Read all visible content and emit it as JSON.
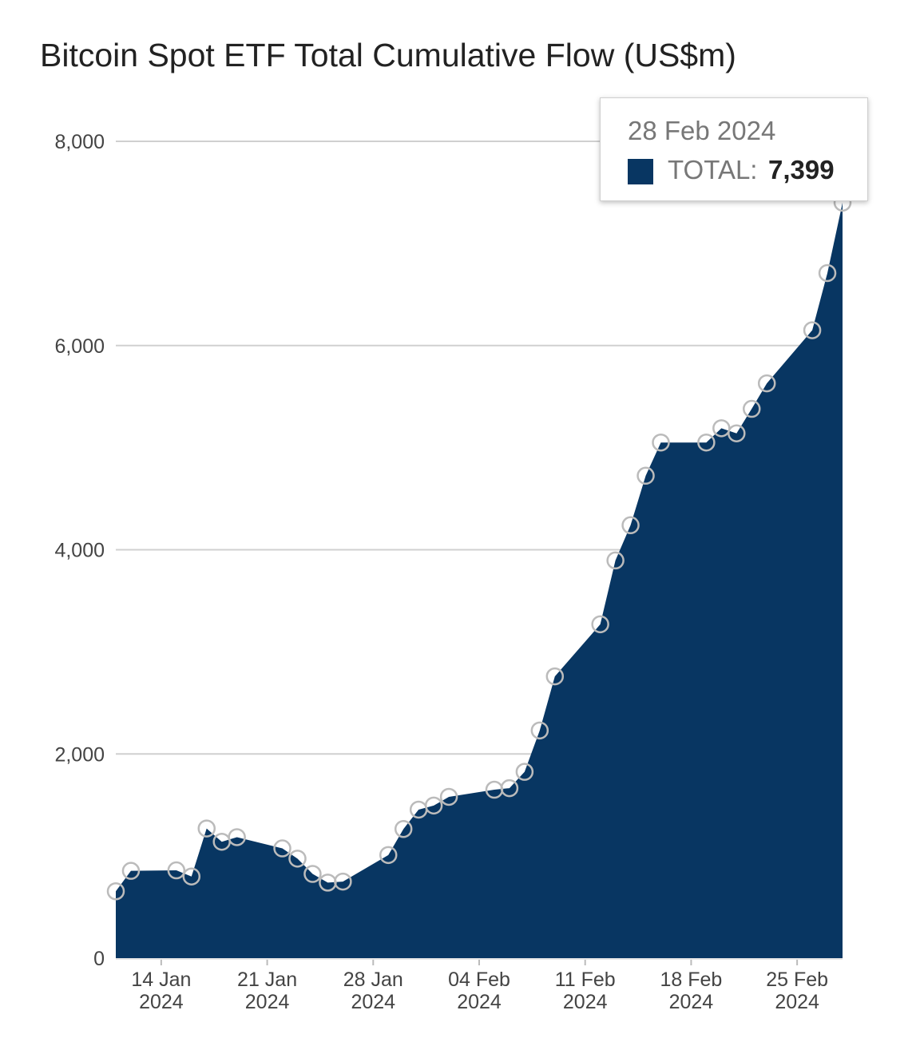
{
  "chart_data": {
    "type": "area",
    "title": "Bitcoin Spot ETF Total Cumulative Flow (US$m)",
    "series_name": "TOTAL",
    "color": "#083662",
    "marker_color": "#bbbbbb",
    "gridline_color": "#d0d0d0",
    "ylim": [
      0,
      8000
    ],
    "y_ticks": [
      0,
      2000,
      4000,
      6000,
      8000
    ],
    "y_tick_labels": [
      "0",
      "2,000",
      "4,000",
      "6,000",
      "8,000"
    ],
    "x_range": [
      "2024-01-11",
      "2024-02-28"
    ],
    "x_ticks": [
      "2024-01-14",
      "2024-01-21",
      "2024-01-28",
      "2024-02-04",
      "2024-02-11",
      "2024-02-18",
      "2024-02-25"
    ],
    "x_tick_labels": [
      [
        "14 Jan",
        "2024"
      ],
      [
        "21 Jan",
        "2024"
      ],
      [
        "28 Jan",
        "2024"
      ],
      [
        "04 Feb",
        "2024"
      ],
      [
        "11 Feb",
        "2024"
      ],
      [
        "18 Feb",
        "2024"
      ],
      [
        "25 Feb",
        "2024"
      ]
    ],
    "x": [
      "2024-01-11",
      "2024-01-12",
      "2024-01-15",
      "2024-01-16",
      "2024-01-17",
      "2024-01-18",
      "2024-01-19",
      "2024-01-22",
      "2024-01-23",
      "2024-01-24",
      "2024-01-25",
      "2024-01-26",
      "2024-01-29",
      "2024-01-30",
      "2024-01-31",
      "2024-02-01",
      "2024-02-02",
      "2024-02-05",
      "2024-02-06",
      "2024-02-07",
      "2024-02-08",
      "2024-02-09",
      "2024-02-12",
      "2024-02-13",
      "2024-02-14",
      "2024-02-15",
      "2024-02-16",
      "2024-02-19",
      "2024-02-20",
      "2024-02-21",
      "2024-02-22",
      "2024-02-23",
      "2024-02-26",
      "2024-02-27",
      "2024-02-28"
    ],
    "values": [
      655,
      855,
      860,
      800,
      1270,
      1140,
      1185,
      1075,
      975,
      825,
      740,
      750,
      1010,
      1265,
      1455,
      1495,
      1580,
      1650,
      1665,
      1825,
      2230,
      2760,
      3270,
      3895,
      4240,
      4725,
      5050,
      5050,
      5190,
      5140,
      5380,
      5630,
      6150,
      6710,
      7399
    ],
    "marker_dates": [
      "2024-01-11",
      "2024-01-12",
      "2024-01-15",
      "2024-01-16",
      "2024-01-17",
      "2024-01-18",
      "2024-01-19",
      "2024-01-22",
      "2024-01-23",
      "2024-01-24",
      "2024-01-25",
      "2024-01-26",
      "2024-01-29",
      "2024-01-30",
      "2024-01-31",
      "2024-02-01",
      "2024-02-02",
      "2024-02-05",
      "2024-02-06",
      "2024-02-07",
      "2024-02-08",
      "2024-02-09",
      "2024-02-12",
      "2024-02-13",
      "2024-02-14",
      "2024-02-15",
      "2024-02-16",
      "2024-02-19",
      "2024-02-20",
      "2024-02-21",
      "2024-02-22",
      "2024-02-23",
      "2024-02-26",
      "2024-02-27",
      "2024-02-28"
    ],
    "grid": true,
    "legend": "none"
  },
  "tooltip": {
    "date": "28 Feb 2024",
    "series": "TOTAL:",
    "value": "7,399"
  }
}
